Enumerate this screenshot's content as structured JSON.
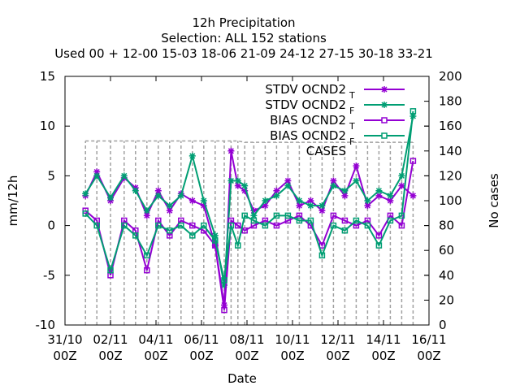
{
  "chart_data": {
    "type": "line",
    "title": [
      "12h Precipitation",
      "Selection: ALL     152 stations",
      "Used  00 + 12-00 15-03 18-06 21-09 24-12 27-15 30-18 33-21"
    ],
    "xlabel": "Date",
    "ylabel": "mm/12h",
    "y2label": "No cases",
    "ylim": [
      -10,
      15
    ],
    "y2lim": [
      0,
      200
    ],
    "yticks": [
      "-10",
      "-5",
      "0",
      "5",
      "10",
      "15"
    ],
    "y2ticks": [
      "0",
      "20",
      "40",
      "60",
      "80",
      "100",
      "120",
      "140",
      "160",
      "180",
      "200"
    ],
    "xlim": [
      "2023-10-31 00Z",
      "2023-11-16 00Z"
    ],
    "xticks": [
      {
        "date": "31/10",
        "hour": "00Z"
      },
      {
        "date": "02/11",
        "hour": "00Z"
      },
      {
        "date": "04/11",
        "hour": "00Z"
      },
      {
        "date": "06/11",
        "hour": "00Z"
      },
      {
        "date": "08/11",
        "hour": "00Z"
      },
      {
        "date": "10/11",
        "hour": "00Z"
      },
      {
        "date": "12/11",
        "hour": "00Z"
      },
      {
        "date": "14/11",
        "hour": "00Z"
      },
      {
        "date": "16/11",
        "hour": "00Z"
      }
    ],
    "legend_position": "top-right",
    "x_unit": "days since 31/10 00Z",
    "series": [
      {
        "name": "STDV OCND2",
        "subscript": "T",
        "color": "#9400d3",
        "marker": "star",
        "x": [
          0.9,
          1.4,
          2.0,
          2.6,
          3.1,
          3.6,
          4.1,
          4.6,
          5.1,
          5.6,
          6.1,
          6.6,
          7.0,
          7.3,
          7.6,
          7.9,
          8.3,
          8.8,
          9.3,
          9.8,
          10.3,
          10.8,
          11.3,
          11.8,
          12.3,
          12.8,
          13.3,
          13.8,
          14.3,
          14.8,
          15.3
        ],
        "y": [
          3.0,
          5.4,
          2.5,
          4.8,
          3.8,
          1.0,
          3.5,
          1.5,
          3.2,
          2.5,
          2.0,
          -2.0,
          -8.0,
          7.5,
          4.0,
          3.5,
          1.5,
          2.0,
          3.5,
          4.5,
          2.0,
          2.5,
          1.5,
          4.5,
          3.0,
          6.0,
          2.0,
          3.0,
          2.5,
          4.0,
          3.0
        ]
      },
      {
        "name": "STDV OCND2",
        "subscript": "F",
        "color": "#009e73",
        "marker": "star",
        "x": [
          0.9,
          1.4,
          2.0,
          2.6,
          3.1,
          3.6,
          4.1,
          4.6,
          5.1,
          5.6,
          6.1,
          6.6,
          7.0,
          7.3,
          7.6,
          7.9,
          8.3,
          8.8,
          9.3,
          9.8,
          10.3,
          10.8,
          11.3,
          11.8,
          12.3,
          12.8,
          13.3,
          13.8,
          14.3,
          14.8,
          15.3
        ],
        "y": [
          3.2,
          5.0,
          2.8,
          5.0,
          3.5,
          1.5,
          3.0,
          2.0,
          3.0,
          7.0,
          2.5,
          -1.0,
          -6.0,
          4.5,
          4.5,
          4.0,
          1.0,
          2.5,
          3.0,
          4.0,
          2.5,
          2.0,
          2.0,
          4.0,
          3.5,
          4.5,
          2.5,
          3.5,
          3.0,
          5.0,
          11.0
        ]
      },
      {
        "name": "BIAS OCND2",
        "subscript": "T",
        "color": "#9400d3",
        "marker": "square",
        "x": [
          0.9,
          1.4,
          2.0,
          2.6,
          3.1,
          3.6,
          4.1,
          4.6,
          5.1,
          5.6,
          6.1,
          6.6,
          7.0,
          7.3,
          7.6,
          7.9,
          8.3,
          8.8,
          9.3,
          9.8,
          10.3,
          10.8,
          11.3,
          11.8,
          12.3,
          12.8,
          13.3,
          13.8,
          14.3,
          14.8,
          15.3
        ],
        "y": [
          1.5,
          0.5,
          -5.0,
          0.5,
          -0.5,
          -4.5,
          0.5,
          -1.0,
          0.5,
          0.0,
          -0.5,
          -2.0,
          -8.5,
          0.5,
          0.0,
          -0.5,
          0.0,
          0.5,
          0.0,
          0.5,
          1.0,
          0.0,
          -2.0,
          1.0,
          0.5,
          0.0,
          0.5,
          -1.0,
          1.0,
          0.0,
          6.5
        ]
      },
      {
        "name": "BIAS OCND2",
        "subscript": "F",
        "color": "#009e73",
        "marker": "square",
        "x": [
          0.9,
          1.4,
          2.0,
          2.6,
          3.1,
          3.6,
          4.1,
          4.6,
          5.1,
          5.6,
          6.1,
          6.6,
          7.0,
          7.3,
          7.6,
          7.9,
          8.3,
          8.8,
          9.3,
          9.8,
          10.3,
          10.8,
          11.3,
          11.8,
          12.3,
          12.8,
          13.3,
          13.8,
          14.3,
          14.8,
          15.3
        ],
        "y": [
          1.2,
          0.0,
          -4.5,
          0.0,
          -1.0,
          -3.0,
          0.0,
          -0.5,
          0.0,
          -1.0,
          0.0,
          -1.5,
          -5.5,
          0.0,
          -2.0,
          1.0,
          0.5,
          0.0,
          1.0,
          1.0,
          0.5,
          0.5,
          -3.0,
          0.0,
          -0.5,
          0.5,
          0.0,
          -2.0,
          0.5,
          1.0,
          11.5
        ]
      },
      {
        "name": "CASES",
        "color": "#a0a0a0",
        "marker": "none",
        "dash": true,
        "axis": "y2",
        "x": [
          0.9,
          1.4,
          2.0,
          2.6,
          3.1,
          3.6,
          4.1,
          4.6,
          5.1,
          5.6,
          6.1,
          6.6,
          7.0,
          7.3,
          7.6,
          7.9,
          8.3,
          8.8,
          9.3,
          9.8,
          10.3,
          10.8,
          11.3,
          11.8,
          12.3,
          12.8,
          13.3,
          13.8,
          14.3,
          14.8,
          15.3
        ],
        "y": [
          148,
          148,
          148,
          148,
          148,
          148,
          148,
          148,
          148,
          148,
          148,
          148,
          148,
          148,
          148,
          147,
          147,
          147,
          147,
          147,
          147,
          147,
          147,
          147,
          147,
          147,
          147,
          147,
          147,
          147,
          147
        ]
      }
    ]
  }
}
